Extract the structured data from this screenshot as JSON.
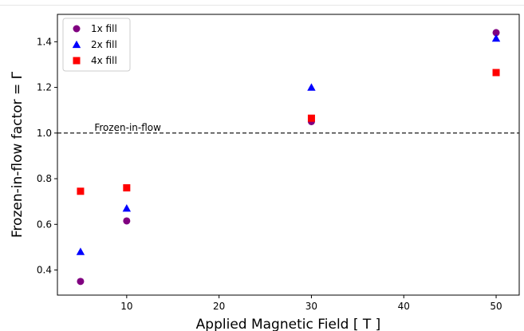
{
  "chart_data": {
    "type": "scatter",
    "title": "",
    "xlabel": "Applied Magnetic Field [ T ]",
    "ylabel": "Frozen-in-flow factor = Γ",
    "xlim": [
      2.5,
      52.5
    ],
    "ylim": [
      0.29,
      1.52
    ],
    "x_ticks": [
      10,
      20,
      30,
      40,
      50
    ],
    "y_ticks": [
      0.4,
      0.6,
      0.8,
      1.0,
      1.2,
      1.4
    ],
    "x_tick_labels": [
      "10",
      "20",
      "30",
      "40",
      "50"
    ],
    "y_tick_labels": [
      "0.4",
      "0.6",
      "0.8",
      "1.0",
      "1.2",
      "1.4"
    ],
    "grid": false,
    "legend_position": "top-left",
    "reference_line": {
      "y": 1.0,
      "style": "dashed",
      "label": "Frozen-in-flow",
      "label_x": 6.5
    },
    "series": [
      {
        "name": "1x fill",
        "marker": "circle",
        "color": "#800080",
        "x": [
          5,
          10,
          30,
          50
        ],
        "y": [
          0.35,
          0.615,
          1.05,
          1.44
        ]
      },
      {
        "name": "2x fill",
        "marker": "triangle",
        "color": "#0000ff",
        "x": [
          5,
          10,
          30,
          50
        ],
        "y": [
          0.48,
          0.67,
          1.2,
          1.415
        ]
      },
      {
        "name": "4x fill",
        "marker": "square",
        "color": "#ff0000",
        "x": [
          5,
          10,
          30,
          50
        ],
        "y": [
          0.745,
          0.76,
          1.065,
          1.265
        ]
      }
    ]
  }
}
